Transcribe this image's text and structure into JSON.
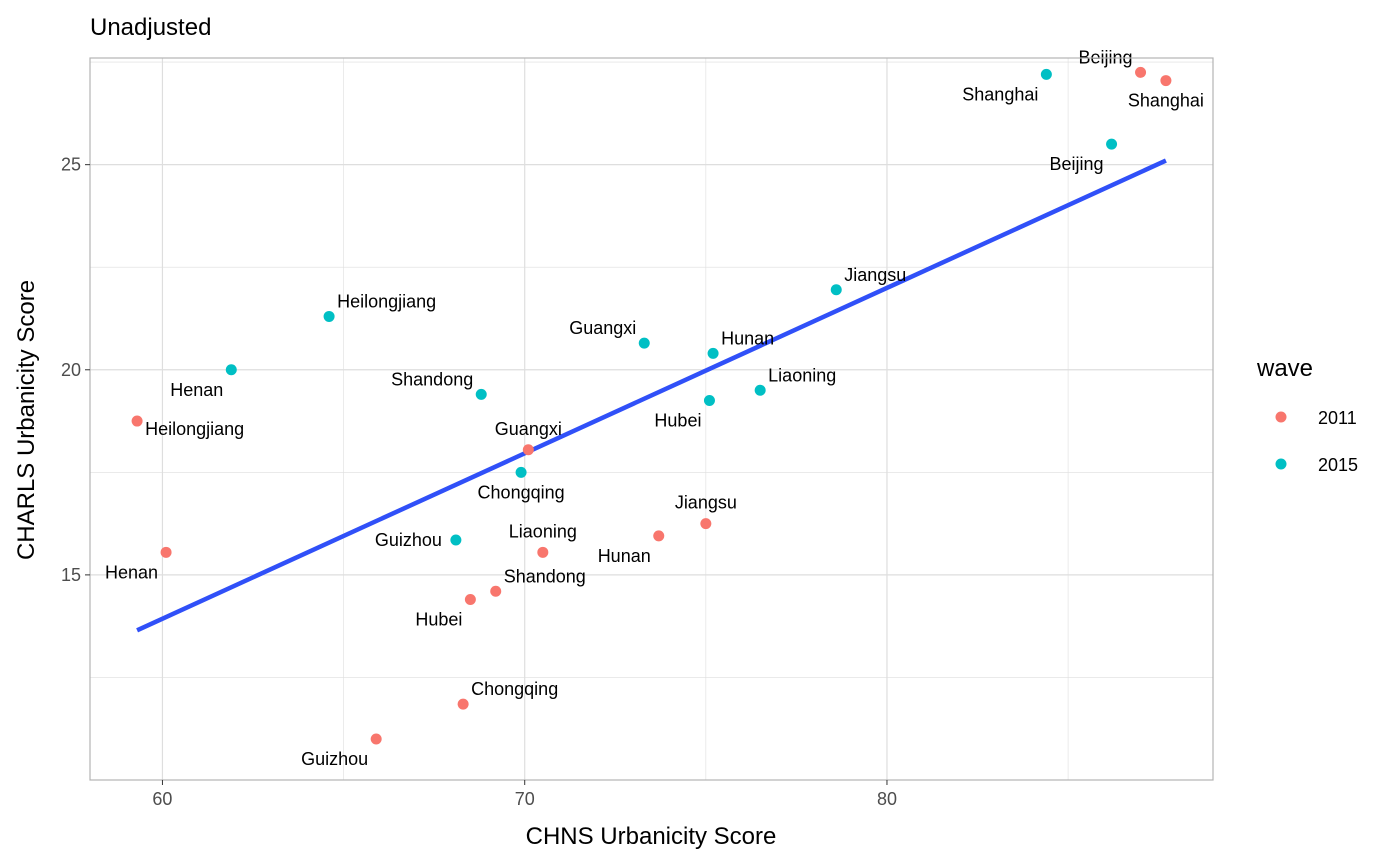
{
  "chart_data": {
    "type": "scatter",
    "title": "Unadjusted",
    "xlabel": "CHNS Urbanicity Score",
    "ylabel": "CHARLS Urbanicity Score",
    "xlim": [
      58,
      89
    ],
    "ylim": [
      10,
      27.6
    ],
    "x_ticks": [
      60,
      70,
      80
    ],
    "x_tick_labels": [
      "60",
      "70",
      "80"
    ],
    "y_ticks": [
      15,
      20,
      25
    ],
    "y_tick_labels": [
      "15",
      "20",
      "25"
    ],
    "grid": true,
    "legend": {
      "title": "wave",
      "placement": "right",
      "entries": [
        {
          "label": "2011",
          "color": "#F8766D"
        },
        {
          "label": "2015",
          "color": "#00BFC4"
        }
      ]
    },
    "series": [
      {
        "name": "2011",
        "color": "#F8766D",
        "points": [
          {
            "label": "Beijing",
            "x": 87.0,
            "y": 27.25,
            "label_pos": "above-left"
          },
          {
            "label": "Shanghai",
            "x": 87.7,
            "y": 27.05,
            "label_pos": "below"
          },
          {
            "label": "Heilongjiang",
            "x": 59.3,
            "y": 18.75,
            "label_pos": "below-right"
          },
          {
            "label": "Guangxi",
            "x": 70.1,
            "y": 18.05,
            "label_pos": "above"
          },
          {
            "label": "Henan",
            "x": 60.1,
            "y": 15.55,
            "label_pos": "below-left"
          },
          {
            "label": "Liaoning",
            "x": 70.5,
            "y": 15.55,
            "label_pos": "above"
          },
          {
            "label": "Jiangsu",
            "x": 75.0,
            "y": 16.25,
            "label_pos": "above"
          },
          {
            "label": "Hunan",
            "x": 73.7,
            "y": 15.95,
            "label_pos": "below-left"
          },
          {
            "label": "Shandong",
            "x": 69.2,
            "y": 14.6,
            "label_pos": "above-right"
          },
          {
            "label": "Hubei",
            "x": 68.5,
            "y": 14.4,
            "label_pos": "below-left"
          },
          {
            "label": "Chongqing",
            "x": 68.3,
            "y": 11.85,
            "label_pos": "above-right"
          },
          {
            "label": "Guizhou",
            "x": 65.9,
            "y": 11.0,
            "label_pos": "below-left"
          }
        ]
      },
      {
        "name": "2015",
        "color": "#00BFC4",
        "points": [
          {
            "label": "Shanghai",
            "x": 84.4,
            "y": 27.2,
            "label_pos": "below-left"
          },
          {
            "label": "Beijing",
            "x": 86.2,
            "y": 25.5,
            "label_pos": "below-left"
          },
          {
            "label": "Jiangsu",
            "x": 78.6,
            "y": 21.95,
            "label_pos": "above-right"
          },
          {
            "label": "Heilongjiang",
            "x": 64.6,
            "y": 21.3,
            "label_pos": "above-right"
          },
          {
            "label": "Guangxi",
            "x": 73.3,
            "y": 20.65,
            "label_pos": "above-left"
          },
          {
            "label": "Hunan",
            "x": 75.2,
            "y": 20.4,
            "label_pos": "above-right"
          },
          {
            "label": "Henan",
            "x": 61.9,
            "y": 20.0,
            "label_pos": "below-left"
          },
          {
            "label": "Shandong",
            "x": 68.8,
            "y": 19.4,
            "label_pos": "above-left"
          },
          {
            "label": "Liaoning",
            "x": 76.5,
            "y": 19.5,
            "label_pos": "above-right"
          },
          {
            "label": "Hubei",
            "x": 75.1,
            "y": 19.25,
            "label_pos": "below-left"
          },
          {
            "label": "Chongqing",
            "x": 69.9,
            "y": 17.5,
            "label_pos": "below"
          },
          {
            "label": "Guizhou",
            "x": 68.1,
            "y": 15.85,
            "label_pos": "left"
          }
        ]
      }
    ],
    "fit_line": {
      "color": "#3050F8",
      "x": [
        59.3,
        87.7
      ],
      "y": [
        13.65,
        25.1
      ]
    }
  }
}
